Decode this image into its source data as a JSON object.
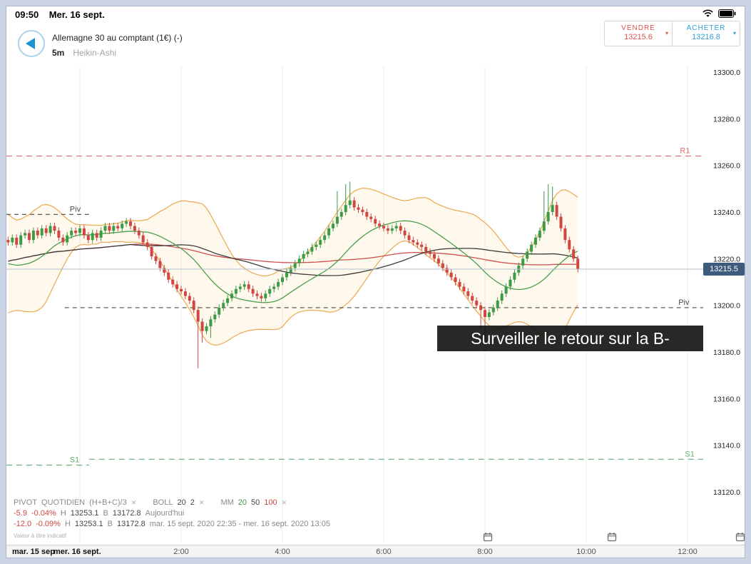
{
  "status_bar": {
    "time": "09:50",
    "date": "Mer. 16 sept."
  },
  "header": {
    "instrument": "Allemagne 30 au comptant (1€) (-)",
    "timeframe": "5m",
    "chart_type": "Heikin-Ashi"
  },
  "dealing": {
    "sell_label": "VENDRE",
    "sell_price": "13215.6",
    "buy_label": "ACHETER",
    "buy_price": "13216.8",
    "caret_symbol": "▾",
    "sell_color": "#e0514f",
    "buy_color": "#2f9fd8"
  },
  "price_badge": "13215.5",
  "caption": "Surveiller le retour sur la B-",
  "indicators": {
    "pivot": {
      "name": "PIVOT",
      "p1": "QUOTIDIEN",
      "p2": "(H+B+C)/3"
    },
    "boll": {
      "name": "BOLL",
      "p1": "20",
      "p2": "2"
    },
    "mm": {
      "name": "MM",
      "p1": "20",
      "p2": "50",
      "p3": "100"
    },
    "close_symbol": "✕"
  },
  "stats": [
    {
      "change": "-5.9",
      "change_pct": "-0.04%",
      "high_label": "H",
      "high": "13253.1",
      "low_label": "B",
      "low": "13172.8",
      "period": "Aujourd'hui"
    },
    {
      "change": "-12.0",
      "change_pct": "-0.09%",
      "high_label": "H",
      "high": "13253.1",
      "low_label": "B",
      "low": "13172.8",
      "period": "mar. 15 sept. 2020 22:35 - mer. 16 sept. 2020 13:05"
    }
  ],
  "footnote": "Valeur à titre indicatif",
  "x_axis": {
    "date_labels": [
      "mar. 15 sep",
      "mer. 16 sept."
    ]
  },
  "chart_data": {
    "type": "candlestick",
    "style": "heikin-ashi",
    "title": "Allemagne 30 au comptant (1€)",
    "interval": "5m",
    "ylim": [
      13110,
      13305
    ],
    "y_ticks": [
      13300,
      13280,
      13260,
      13240,
      13220,
      13200,
      13180,
      13160,
      13140,
      13120
    ],
    "x_ticks": [
      "2:00",
      "4:00",
      "6:00",
      "8:00",
      "10:00",
      "12:00"
    ],
    "x_tick_hours": [
      2,
      4,
      6,
      8,
      10,
      12
    ],
    "grid_hours": [
      0,
      2,
      4,
      6,
      8,
      10,
      12
    ],
    "start_hour": -1.41667,
    "interval_hours": 0.0833333,
    "current_price": 13215.5,
    "session_high": 13253.1,
    "session_low": 13172.8,
    "levels": [
      {
        "label": "R1",
        "value": 13264,
        "color": "#e36a6a",
        "dash": "8,6",
        "from_hour": -1.45,
        "to_hour": 12.32,
        "label_hour": 11.85
      },
      {
        "label": "Piv",
        "value": 13239,
        "color": "#4a4a4a",
        "dash": "6,5",
        "from_hour": -1.45,
        "to_hour": 0.18,
        "label_hour": -0.2
      },
      {
        "label": "Piv",
        "value": 13199,
        "color": "#4a4a4a",
        "dash": "6,5",
        "from_hour": -0.3,
        "to_hour": 12.32,
        "label_hour": 11.82
      },
      {
        "label": "S1",
        "value": 13131.5,
        "color": "#5fae71",
        "dash": "8,6",
        "from_hour": -1.45,
        "to_hour": 0.18,
        "label_hour": -0.2
      },
      {
        "label": "S1",
        "value": 13134,
        "color": "#5fae71",
        "dash": "8,6",
        "from_hour": 0.18,
        "to_hour": 12.32,
        "label_hour": 11.95
      }
    ],
    "indicators": {
      "bollinger_period": 20,
      "bollinger_stddev": 2,
      "ma_periods": [
        20,
        50,
        100
      ]
    },
    "colors": {
      "up": "#3c9b45",
      "down": "#cf4740",
      "band": "#eaa94e",
      "band_fill": "rgba(247,198,110,0.12)",
      "ma20": "#49a04f",
      "ma50": "#3b3b3b",
      "ma100": "#cf4f4f",
      "price_line": "#b3bfca",
      "badge_bg": "#3e5a7c"
    },
    "first_open": 13228,
    "wick_default": 1.4,
    "seed_closes": [
      13240,
      13236,
      13232,
      13228,
      13224,
      13220,
      13216,
      13212,
      13208,
      13204,
      13200,
      13203,
      13206,
      13209,
      13212,
      13216,
      13220,
      13224,
      13228,
      13232
    ],
    "closes": [
      13227,
      13229,
      13226,
      13230,
      13231,
      13228,
      13232,
      13230,
      13233,
      13231,
      13234,
      13232,
      13229,
      13227,
      13230,
      13232,
      13231,
      13233,
      13230,
      13228,
      13231,
      13229,
      13232,
      13234,
      13232,
      13234,
      13233,
      13235,
      13236,
      13234,
      13232,
      13230,
      13227,
      13225,
      13221,
      13219,
      13216,
      13214,
      13211,
      13209,
      13207,
      13206,
      13204,
      13202,
      13198,
      13193,
      13189,
      13191,
      13194,
      13196,
      13199,
      13201,
      13203,
      13205,
      13207,
      13208,
      13209,
      13207,
      13205,
      13204,
      13203,
      13205,
      13207,
      13208,
      13210,
      13212,
      13214,
      13216,
      13218,
      13220,
      13222,
      13223,
      13225,
      13226,
      13228,
      13230,
      13233,
      13235,
      13238,
      13240,
      13243,
      13245,
      13242,
      13241,
      13240,
      13238,
      13237,
      13235,
      13234,
      13233,
      13232,
      13233,
      13234,
      13232,
      13230,
      13228,
      13227,
      13226,
      13225,
      13223,
      13222,
      13220,
      13218,
      13216,
      13214,
      13212,
      13210,
      13208,
      13206,
      13204,
      13202,
      13200,
      13198,
      13195,
      13197,
      13199,
      13202,
      13205,
      13208,
      13211,
      13214,
      13217,
      13220,
      13223,
      13226,
      13229,
      13232,
      13236,
      13240,
      13243,
      13238,
      13233,
      13228,
      13224,
      13220,
      13215.5
    ],
    "wick_overrides": {
      "45": {
        "low": 13173
      },
      "46": {
        "low": 13184
      },
      "48": {
        "low": 13186
      },
      "78": {
        "high": 13249
      },
      "80": {
        "high": 13252
      },
      "81": {
        "high": 13253
      },
      "112": {
        "low": 13190
      },
      "113": {
        "low": 13185
      },
      "127": {
        "high": 13249
      },
      "128": {
        "high": 13252
      },
      "129": {
        "high": 13251
      }
    },
    "event_marker_hours": [
      8.05,
      10.5,
      13.05
    ]
  }
}
